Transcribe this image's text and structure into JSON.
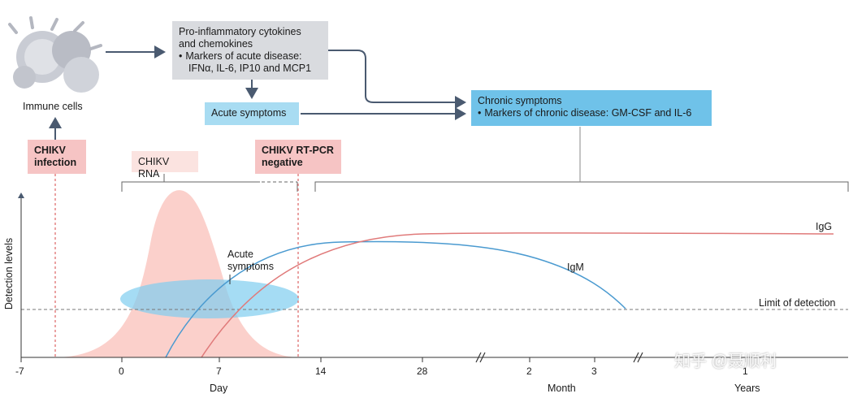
{
  "cells": {
    "label": "Immune cells"
  },
  "cytokine_box": {
    "line1": "Pro-inflammatory cytokines",
    "line2": "and chemokines",
    "bullet1": "Markers of acute disease:",
    "bullet2": "IFNα, IL-6, IP10 and MCP1"
  },
  "acute_box": {
    "label": "Acute symptoms"
  },
  "chronic_box": {
    "line1": "Chronic symptoms",
    "bullet": "Markers of chronic disease: GM-CSF and IL-6"
  },
  "infection_box": {
    "line1": "CHIKV",
    "line2": "infection"
  },
  "rna_box": {
    "label": "CHIKV RNA"
  },
  "rtpcr_box": {
    "line1": "CHIKV RT-PCR",
    "line2": "negative"
  },
  "plot": {
    "ylabel": "Detection levels",
    "acute_label_line1": "Acute",
    "acute_label_line2": "symptoms",
    "igg_label": "IgG",
    "igm_label": "IgM",
    "lod_label": "Limit of detection",
    "day_ticks": [
      "-7",
      "0",
      "7",
      "14",
      "28"
    ],
    "month_ticks": [
      "2",
      "3"
    ],
    "year_ticks": [
      "1"
    ],
    "day_label": "Day",
    "month_label": "Month",
    "year_label": "Years"
  },
  "colors": {
    "rna_fill": "#fbd0cb",
    "acute_ellipse": "#7fcdf0",
    "igg": "#e07a7a",
    "igm": "#4a9ad0",
    "arrow": "#4a5a70"
  },
  "watermark": "知乎 @聂顺利"
}
